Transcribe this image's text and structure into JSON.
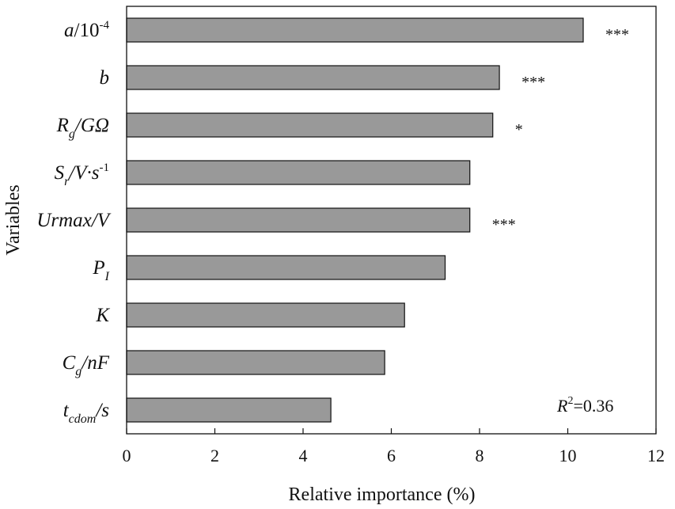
{
  "chart_data": {
    "type": "bar",
    "orientation": "horizontal",
    "xlabel": "Relative importance (%)",
    "ylabel": "Variables",
    "xlim": [
      0,
      12
    ],
    "xticks": [
      "0",
      "2",
      "4",
      "6",
      "8",
      "10",
      "12"
    ],
    "categories": [
      {
        "base": "a",
        "sub": "",
        "rest": "/10",
        "sup": "-4"
      },
      {
        "base": "b",
        "sub": "",
        "rest": "",
        "sup": ""
      },
      {
        "base": "R",
        "sub": "g",
        "rest": "/GΩ",
        "sup": ""
      },
      {
        "base": "S",
        "sub": "r",
        "rest": "/V·s",
        "sup": "-1"
      },
      {
        "base": "Urmax/V",
        "sub": "",
        "rest": "",
        "sup": ""
      },
      {
        "base": "P",
        "sub": "I",
        "rest": "",
        "sup": ""
      },
      {
        "base": "K",
        "sub": "",
        "rest": "",
        "sup": ""
      },
      {
        "base": "C",
        "sub": "g",
        "rest": "/nF",
        "sup": ""
      },
      {
        "base": "t",
        "sub": "cdom",
        "rest": "/s",
        "sup": ""
      }
    ],
    "values": [
      10.35,
      8.45,
      8.3,
      7.78,
      7.78,
      7.22,
      6.3,
      5.85,
      4.63
    ],
    "significance": [
      "***",
      "***",
      "*",
      "",
      "***",
      "",
      "",
      "",
      ""
    ],
    "bar_color": "#999999",
    "annotation": {
      "prefix": "R",
      "sup": "2",
      "suffix": "=0.36"
    },
    "grid": false
  }
}
